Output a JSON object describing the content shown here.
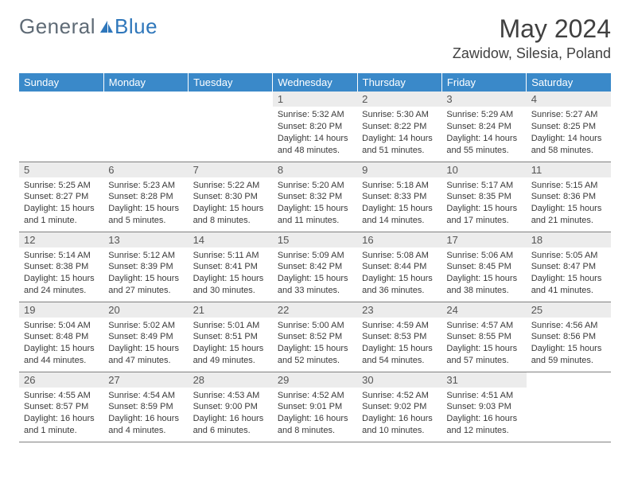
{
  "logo": {
    "brand_a": "General",
    "brand_b": "Blue"
  },
  "colors": {
    "header_bg": "#3a89c9",
    "header_text": "#ffffff",
    "daynum_bg": "#ececec",
    "row_border": "#808080",
    "logo_gray": "#5f6b76",
    "logo_blue": "#2f77bb"
  },
  "title": "May 2024",
  "subtitle": "Zawidow, Silesia, Poland",
  "weekdays": [
    "Sunday",
    "Monday",
    "Tuesday",
    "Wednesday",
    "Thursday",
    "Friday",
    "Saturday"
  ],
  "days": [
    {
      "n": "",
      "sunrise": "",
      "sunset": "",
      "daylight": ""
    },
    {
      "n": "",
      "sunrise": "",
      "sunset": "",
      "daylight": ""
    },
    {
      "n": "",
      "sunrise": "",
      "sunset": "",
      "daylight": ""
    },
    {
      "n": "1",
      "sunrise": "Sunrise: 5:32 AM",
      "sunset": "Sunset: 8:20 PM",
      "daylight": "Daylight: 14 hours and 48 minutes."
    },
    {
      "n": "2",
      "sunrise": "Sunrise: 5:30 AM",
      "sunset": "Sunset: 8:22 PM",
      "daylight": "Daylight: 14 hours and 51 minutes."
    },
    {
      "n": "3",
      "sunrise": "Sunrise: 5:29 AM",
      "sunset": "Sunset: 8:24 PM",
      "daylight": "Daylight: 14 hours and 55 minutes."
    },
    {
      "n": "4",
      "sunrise": "Sunrise: 5:27 AM",
      "sunset": "Sunset: 8:25 PM",
      "daylight": "Daylight: 14 hours and 58 minutes."
    },
    {
      "n": "5",
      "sunrise": "Sunrise: 5:25 AM",
      "sunset": "Sunset: 8:27 PM",
      "daylight": "Daylight: 15 hours and 1 minute."
    },
    {
      "n": "6",
      "sunrise": "Sunrise: 5:23 AM",
      "sunset": "Sunset: 8:28 PM",
      "daylight": "Daylight: 15 hours and 5 minutes."
    },
    {
      "n": "7",
      "sunrise": "Sunrise: 5:22 AM",
      "sunset": "Sunset: 8:30 PM",
      "daylight": "Daylight: 15 hours and 8 minutes."
    },
    {
      "n": "8",
      "sunrise": "Sunrise: 5:20 AM",
      "sunset": "Sunset: 8:32 PM",
      "daylight": "Daylight: 15 hours and 11 minutes."
    },
    {
      "n": "9",
      "sunrise": "Sunrise: 5:18 AM",
      "sunset": "Sunset: 8:33 PM",
      "daylight": "Daylight: 15 hours and 14 minutes."
    },
    {
      "n": "10",
      "sunrise": "Sunrise: 5:17 AM",
      "sunset": "Sunset: 8:35 PM",
      "daylight": "Daylight: 15 hours and 17 minutes."
    },
    {
      "n": "11",
      "sunrise": "Sunrise: 5:15 AM",
      "sunset": "Sunset: 8:36 PM",
      "daylight": "Daylight: 15 hours and 21 minutes."
    },
    {
      "n": "12",
      "sunrise": "Sunrise: 5:14 AM",
      "sunset": "Sunset: 8:38 PM",
      "daylight": "Daylight: 15 hours and 24 minutes."
    },
    {
      "n": "13",
      "sunrise": "Sunrise: 5:12 AM",
      "sunset": "Sunset: 8:39 PM",
      "daylight": "Daylight: 15 hours and 27 minutes."
    },
    {
      "n": "14",
      "sunrise": "Sunrise: 5:11 AM",
      "sunset": "Sunset: 8:41 PM",
      "daylight": "Daylight: 15 hours and 30 minutes."
    },
    {
      "n": "15",
      "sunrise": "Sunrise: 5:09 AM",
      "sunset": "Sunset: 8:42 PM",
      "daylight": "Daylight: 15 hours and 33 minutes."
    },
    {
      "n": "16",
      "sunrise": "Sunrise: 5:08 AM",
      "sunset": "Sunset: 8:44 PM",
      "daylight": "Daylight: 15 hours and 36 minutes."
    },
    {
      "n": "17",
      "sunrise": "Sunrise: 5:06 AM",
      "sunset": "Sunset: 8:45 PM",
      "daylight": "Daylight: 15 hours and 38 minutes."
    },
    {
      "n": "18",
      "sunrise": "Sunrise: 5:05 AM",
      "sunset": "Sunset: 8:47 PM",
      "daylight": "Daylight: 15 hours and 41 minutes."
    },
    {
      "n": "19",
      "sunrise": "Sunrise: 5:04 AM",
      "sunset": "Sunset: 8:48 PM",
      "daylight": "Daylight: 15 hours and 44 minutes."
    },
    {
      "n": "20",
      "sunrise": "Sunrise: 5:02 AM",
      "sunset": "Sunset: 8:49 PM",
      "daylight": "Daylight: 15 hours and 47 minutes."
    },
    {
      "n": "21",
      "sunrise": "Sunrise: 5:01 AM",
      "sunset": "Sunset: 8:51 PM",
      "daylight": "Daylight: 15 hours and 49 minutes."
    },
    {
      "n": "22",
      "sunrise": "Sunrise: 5:00 AM",
      "sunset": "Sunset: 8:52 PM",
      "daylight": "Daylight: 15 hours and 52 minutes."
    },
    {
      "n": "23",
      "sunrise": "Sunrise: 4:59 AM",
      "sunset": "Sunset: 8:53 PM",
      "daylight": "Daylight: 15 hours and 54 minutes."
    },
    {
      "n": "24",
      "sunrise": "Sunrise: 4:57 AM",
      "sunset": "Sunset: 8:55 PM",
      "daylight": "Daylight: 15 hours and 57 minutes."
    },
    {
      "n": "25",
      "sunrise": "Sunrise: 4:56 AM",
      "sunset": "Sunset: 8:56 PM",
      "daylight": "Daylight: 15 hours and 59 minutes."
    },
    {
      "n": "26",
      "sunrise": "Sunrise: 4:55 AM",
      "sunset": "Sunset: 8:57 PM",
      "daylight": "Daylight: 16 hours and 1 minute."
    },
    {
      "n": "27",
      "sunrise": "Sunrise: 4:54 AM",
      "sunset": "Sunset: 8:59 PM",
      "daylight": "Daylight: 16 hours and 4 minutes."
    },
    {
      "n": "28",
      "sunrise": "Sunrise: 4:53 AM",
      "sunset": "Sunset: 9:00 PM",
      "daylight": "Daylight: 16 hours and 6 minutes."
    },
    {
      "n": "29",
      "sunrise": "Sunrise: 4:52 AM",
      "sunset": "Sunset: 9:01 PM",
      "daylight": "Daylight: 16 hours and 8 minutes."
    },
    {
      "n": "30",
      "sunrise": "Sunrise: 4:52 AM",
      "sunset": "Sunset: 9:02 PM",
      "daylight": "Daylight: 16 hours and 10 minutes."
    },
    {
      "n": "31",
      "sunrise": "Sunrise: 4:51 AM",
      "sunset": "Sunset: 9:03 PM",
      "daylight": "Daylight: 16 hours and 12 minutes."
    },
    {
      "n": "",
      "sunrise": "",
      "sunset": "",
      "daylight": ""
    }
  ]
}
